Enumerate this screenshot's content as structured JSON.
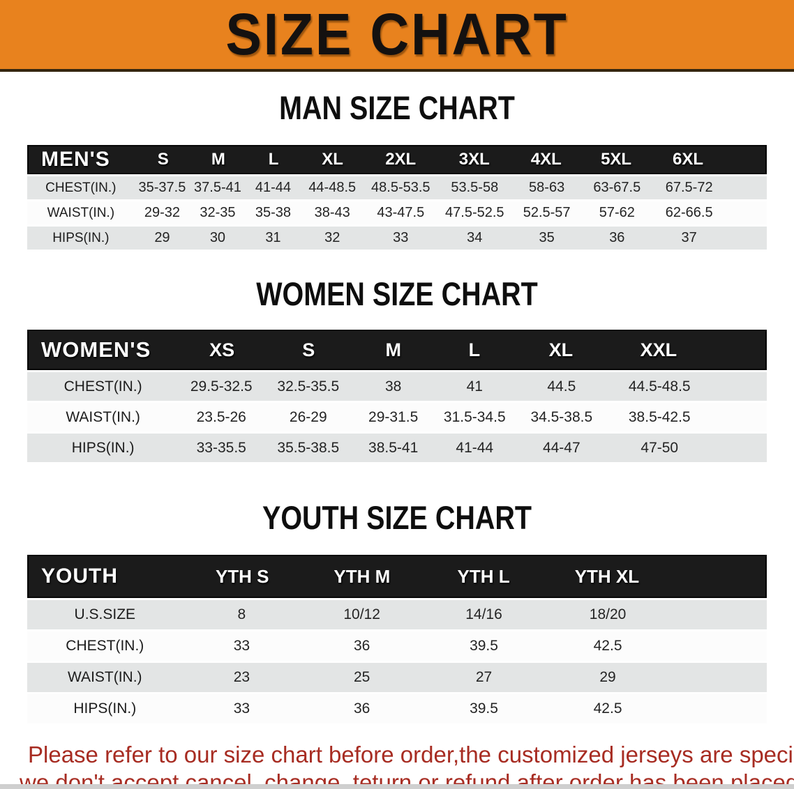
{
  "banner": {
    "title": "SIZE CHART",
    "bg_color": "#E8821E"
  },
  "sections": [
    {
      "heading": "MAN SIZE CHART",
      "label": "MEN'S",
      "columns": [
        "S",
        "M",
        "L",
        "XL",
        "2XL",
        "3XL",
        "4XL",
        "5XL",
        "6XL"
      ],
      "rows": [
        {
          "label": "CHEST(IN.)",
          "values": [
            "35-37.5",
            "37.5-41",
            "41-44",
            "44-48.5",
            "48.5-53.5",
            "53.5-58",
            "58-63",
            "63-67.5",
            "67.5-72"
          ]
        },
        {
          "label": "WAIST(IN.)",
          "values": [
            "29-32",
            "32-35",
            "35-38",
            "38-43",
            "43-47.5",
            "47.5-52.5",
            "52.5-57",
            "57-62",
            "62-66.5"
          ]
        },
        {
          "label": "HIPS(IN.)",
          "values": [
            "29",
            "30",
            "31",
            "32",
            "33",
            "34",
            "35",
            "36",
            "37"
          ]
        }
      ]
    },
    {
      "heading": "WOMEN SIZE CHART",
      "label": "WOMEN'S",
      "columns": [
        "XS",
        "S",
        "M",
        "L",
        "XL",
        "XXL"
      ],
      "rows": [
        {
          "label": "CHEST(IN.)",
          "values": [
            "29.5-32.5",
            "32.5-35.5",
            "38",
            "41",
            "44.5",
            "44.5-48.5"
          ]
        },
        {
          "label": "WAIST(IN.)",
          "values": [
            "23.5-26",
            "26-29",
            "29-31.5",
            "31.5-34.5",
            "34.5-38.5",
            "38.5-42.5"
          ]
        },
        {
          "label": "HIPS(IN.)",
          "values": [
            "33-35.5",
            "35.5-38.5",
            "38.5-41",
            "41-44",
            "44-47",
            "47-50"
          ]
        }
      ]
    },
    {
      "heading": "YOUTH SIZE CHART",
      "label": "YOUTH",
      "columns": [
        "YTH S",
        "YTH M",
        "YTH L",
        "YTH XL"
      ],
      "rows": [
        {
          "label": "U.S.SIZE",
          "values": [
            "8",
            "10/12",
            "14/16",
            "18/20"
          ]
        },
        {
          "label": "CHEST(IN.)",
          "values": [
            "33",
            "36",
            "39.5",
            "42.5"
          ]
        },
        {
          "label": "WAIST(IN.)",
          "values": [
            "23",
            "25",
            "27",
            "29"
          ]
        },
        {
          "label": "HIPS(IN.)",
          "values": [
            "33",
            "36",
            "39.5",
            "42.5"
          ]
        }
      ]
    }
  ],
  "disclaimer": {
    "line1": "Please refer to our size chart before order,the customized jerseys are special products,",
    "line2": "we don't accept cancel, change, teturn or refund after order has been placed!",
    "color": "#A72C22"
  },
  "colors": {
    "banner_bg": "#E8821E",
    "table_header_bg": "#1B1B1B",
    "row_shade": "#E3E5E5",
    "row_plain": "#FCFCFC"
  }
}
